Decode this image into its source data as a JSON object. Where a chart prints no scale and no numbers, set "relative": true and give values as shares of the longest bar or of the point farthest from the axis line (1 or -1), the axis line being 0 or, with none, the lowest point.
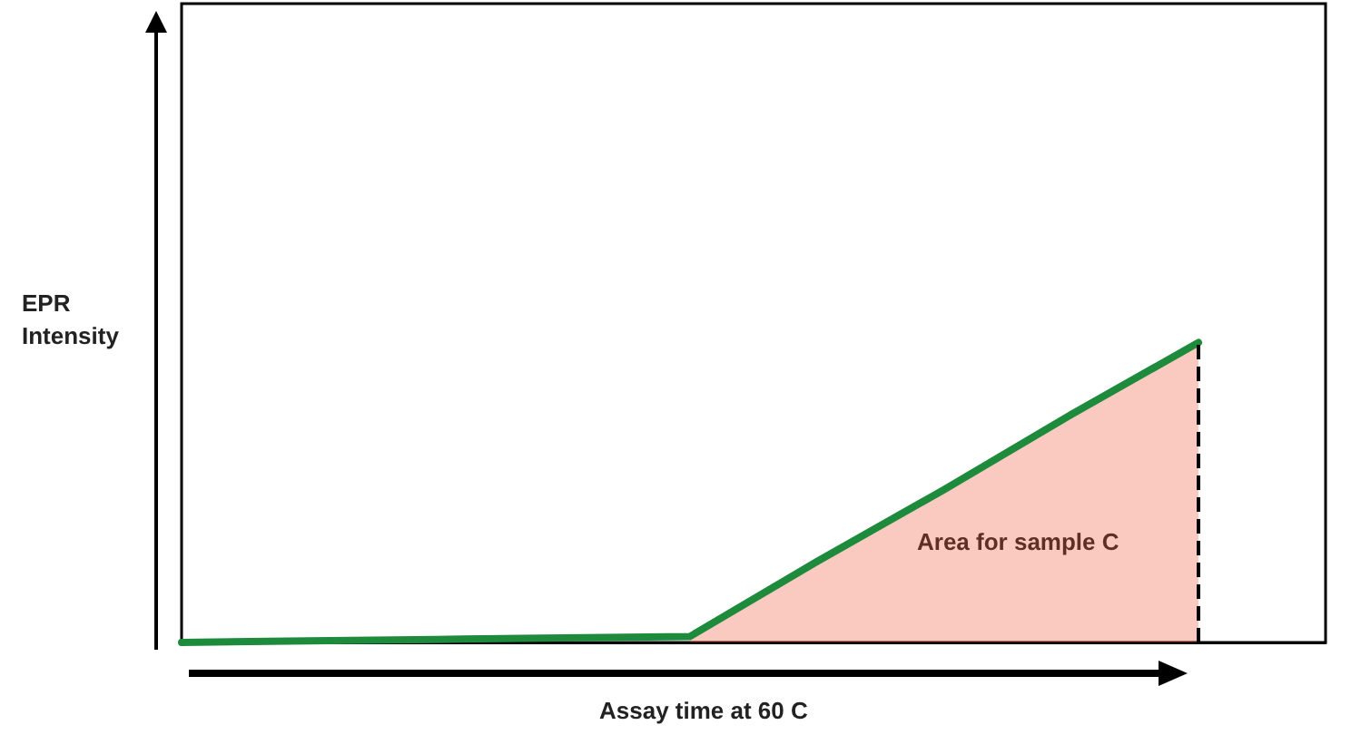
{
  "chart_data": {
    "type": "line",
    "relative": true,
    "xlabel": "Assay time at 60 C",
    "ylabel": "EPR\nIntensity",
    "categories": [
      null,
      null,
      null,
      null,
      null,
      null,
      null,
      null,
      null,
      null
    ],
    "series": [
      {
        "type": "area",
        "color": "#f05030",
        "values": [
          null,
          null,
          null,
          null,
          0.02,
          0.27,
          0.51,
          0.76,
          1,
          null
        ]
      },
      {
        "color": "#1e8a3c",
        "values": [
          0,
          0.005,
          0.01,
          0.015,
          0.02,
          0.27,
          0.51,
          0.76,
          1,
          null
        ]
      }
    ],
    "annotations": [
      "Area for sample C"
    ],
    "grid": false,
    "marker": "none",
    "line_style": "solid"
  }
}
